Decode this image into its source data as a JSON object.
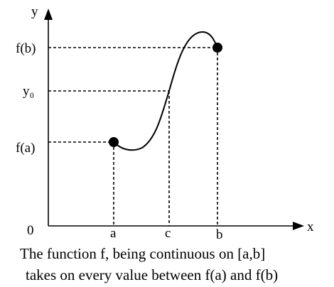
{
  "axes": {
    "y_label": "y",
    "x_label": "x",
    "origin_label": "0"
  },
  "y_levels": [
    "f(b)",
    "y₀",
    "f(a)"
  ],
  "x_points": [
    "a",
    "c",
    "b"
  ],
  "caption": [
    "The function f, being continuous on [a,b]",
    "takes on every value between f(a) and f(b)"
  ]
}
